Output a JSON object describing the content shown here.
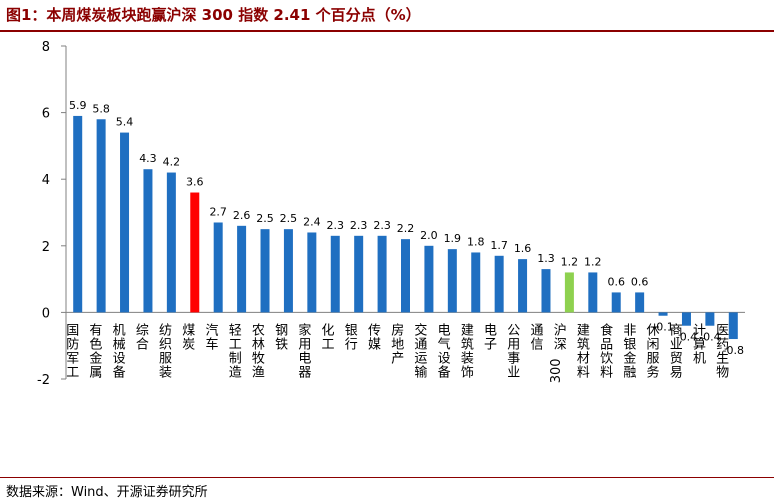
{
  "figure": {
    "title": "图1：本周煤炭板块跑赢沪深 300 指数 2.41 个百分点（%）",
    "source": "数据来源：Wind、开源证券研究所"
  },
  "colors": {
    "bar_default": "#1f6fc1",
    "bar_highlight": "#ff0000",
    "bar_benchmark": "#8ed14f",
    "title": "#8b0000"
  },
  "chart_data": {
    "type": "bar",
    "title": "本周煤炭板块跑赢沪深 300 指数 2.41 个百分点（%）",
    "xlabel": "",
    "ylabel": "",
    "ylim": [
      -2,
      8
    ],
    "yticks": [
      -2,
      0,
      2,
      4,
      6,
      8
    ],
    "grid": false,
    "legend": "none",
    "categories": [
      "国防军工",
      "有色金属",
      "机械设备",
      "综合",
      "纺织服装",
      "煤炭",
      "汽车",
      "轻工制造",
      "农林牧渔",
      "钢铁",
      "家用电器",
      "化工",
      "银行",
      "传媒",
      "房地产",
      "交通运输",
      "电气设备",
      "建筑装饰",
      "电子",
      "公用事业",
      "通信",
      "沪深300",
      "建筑材料",
      "食品饮料",
      "非银金融",
      "休闲服务",
      "商业贸易",
      "计算机",
      "医药生物"
    ],
    "values": [
      5.9,
      5.8,
      5.4,
      4.3,
      4.2,
      3.6,
      2.7,
      2.6,
      2.5,
      2.5,
      2.4,
      2.3,
      2.3,
      2.3,
      2.2,
      2.0,
      1.9,
      1.8,
      1.7,
      1.6,
      1.3,
      1.2,
      1.2,
      0.6,
      0.6,
      -0.1,
      -0.4,
      -0.4,
      -0.8
    ],
    "value_labels": [
      "5.9",
      "5.8",
      "5.4",
      "4.3",
      "4.2",
      "3.6",
      "2.7",
      "2.6",
      "2.5",
      "2.5",
      "2.4",
      "2.3",
      "2.3",
      "2.3",
      "2.2",
      "2.0",
      "1.9",
      "1.8",
      "1.7",
      "1.6",
      "1.3",
      "1.2",
      "1.2",
      "0.6",
      "0.6",
      "-0.1",
      "-0.4",
      "-0.4",
      "-0.8"
    ],
    "highlight": {
      "煤炭": "red",
      "沪深300": "green"
    }
  }
}
